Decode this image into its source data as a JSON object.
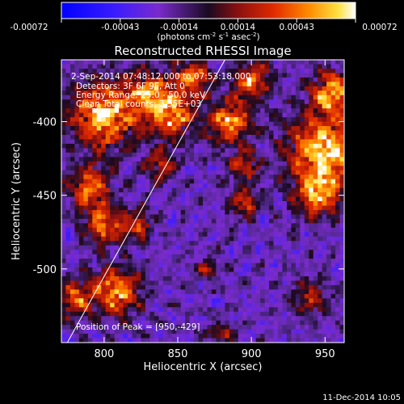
{
  "chart_data": {
    "type": "heatmap",
    "title": "Reconstructed RHESSI Image",
    "xlabel": "Heliocentric X (arcsec)",
    "ylabel": "Heliocentric Y (arcsec)",
    "xlim": [
      771,
      963
    ],
    "ylim": [
      -550,
      -358
    ],
    "xticks": [
      800,
      850,
      900,
      950
    ],
    "yticks": [
      -400,
      -450,
      -500
    ],
    "colorbar": {
      "label_prefix": "(photons cm",
      "label_sup1": "-2",
      "label_mid": " s",
      "label_sup2": "-1",
      "label_mid2": " asec",
      "label_sup3": "-2",
      "label_suffix": ")",
      "ticks": [
        "-0.00072",
        "-0.00043",
        "-0.00014",
        "0.00014",
        "0.00043",
        "0.00072"
      ],
      "range": [
        -0.00072,
        0.00072
      ]
    },
    "annotations": {
      "time_range": "2-Sep-2014 07:48:12.000 to 07:53:18.000",
      "detectors": "Detectors: 3F 6F 9F, Att 0",
      "energy": "Energy Range: 25.0 - 50.0 keV",
      "clean": "Clean     Total counts: 3.35E+03",
      "peak": "Position of Peak = [950,-429]"
    },
    "limb_line": {
      "x": [
        775,
        882
      ],
      "y": [
        -550,
        -358
      ]
    },
    "peak": {
      "x": 950,
      "y": -429
    },
    "grid": false
  },
  "footer": {
    "timestamp": "11-Dec-2014 10:05"
  },
  "colors": {
    "background": "#000000",
    "limb": "#ffffff"
  }
}
